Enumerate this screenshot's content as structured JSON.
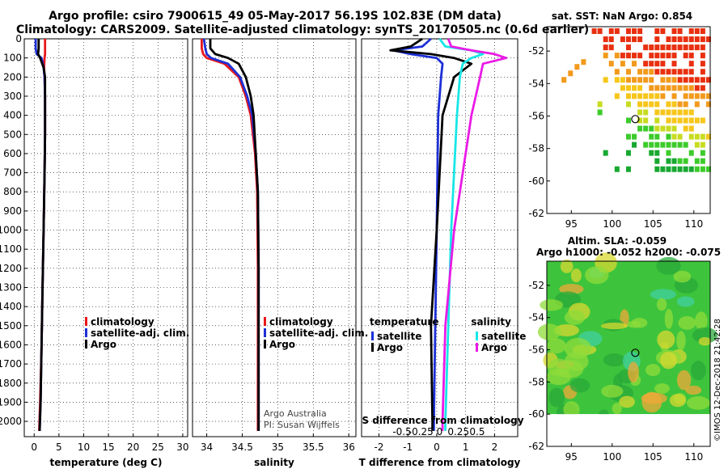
{
  "header": {
    "line1": "Argo profile: csiro 7900615_49 05-May-2017 56.19S 102.83E (DM data)",
    "line2": "Climatology: CARS2009. Satellite-adjusted climatology: synTS_20170505.nc (0.6d earlier)"
  },
  "colors": {
    "climatology": "#e8161b",
    "satellite": "#1c2fd6",
    "argo": "#000000",
    "sat_salinity": "#18e6e6",
    "argo_salinity": "#ea1ae6"
  },
  "chart_data": [
    {
      "type": "line",
      "id": "temperature",
      "xlabel": "temperature (deg C)",
      "xlim": [
        -2,
        31
      ],
      "xticks": [
        0,
        5,
        10,
        15,
        20,
        25,
        30
      ],
      "ylim": [
        0,
        2080
      ],
      "yticks": [
        0,
        100,
        200,
        300,
        400,
        500,
        600,
        700,
        800,
        900,
        1000,
        1100,
        1200,
        1300,
        1400,
        1500,
        1600,
        1700,
        1800,
        1900,
        2000
      ],
      "depth": [
        0,
        50,
        80,
        100,
        150,
        200,
        300,
        500,
        700,
        1000,
        1300,
        1600,
        1900,
        2050
      ],
      "series": [
        {
          "name": "climatology",
          "values": [
            2.2,
            2.2,
            2.2,
            2.1,
            2.0,
            2.1,
            2.2,
            2.2,
            2.1,
            1.9,
            1.7,
            1.5,
            1.2,
            1.0
          ]
        },
        {
          "name": "satellite-adj. clim.",
          "values": [
            0.3,
            0.3,
            0.5,
            1.5,
            1.9,
            2.1,
            2.2,
            2.2,
            2.1,
            1.9,
            1.7,
            1.5,
            1.3,
            1.1
          ]
        },
        {
          "name": "Argo",
          "values": [
            0.9,
            0.9,
            0.8,
            1.2,
            1.9,
            2.2,
            2.2,
            2.2,
            2.1,
            1.9,
            1.7,
            1.5,
            1.3,
            1.1
          ]
        }
      ],
      "legend": [
        "climatology",
        "satellite-adj. clim.",
        "Argo"
      ]
    },
    {
      "type": "line",
      "id": "salinity",
      "xlabel": "salinity",
      "xlim": [
        33.8,
        36.1
      ],
      "xticks": [
        34,
        34.5,
        35,
        35.5,
        36
      ],
      "depth": [
        0,
        50,
        80,
        100,
        130,
        200,
        300,
        400,
        600,
        800,
        1200,
        1600,
        2000,
        2050
      ],
      "series": [
        {
          "name": "climatology",
          "values": [
            33.93,
            33.93,
            33.95,
            34.0,
            34.25,
            34.45,
            34.55,
            34.62,
            34.68,
            34.71,
            34.72,
            34.72,
            34.72,
            34.72
          ]
        },
        {
          "name": "satellite-adj. clim.",
          "values": [
            33.96,
            33.98,
            34.0,
            34.06,
            34.3,
            34.47,
            34.57,
            34.64,
            34.69,
            34.72,
            34.73,
            34.73,
            34.73,
            34.73
          ]
        },
        {
          "name": "Argo",
          "values": [
            34.05,
            34.05,
            34.12,
            34.3,
            34.45,
            34.55,
            34.62,
            34.66,
            34.69,
            34.72,
            34.73,
            34.73,
            34.73,
            34.73
          ]
        }
      ],
      "legend": [
        "climatology",
        "satellite-adj. clim.",
        "Argo"
      ],
      "annotation": [
        "Argo Australia",
        "PI: Susan Wijffels"
      ]
    },
    {
      "type": "line",
      "id": "differences",
      "xlabel": "T difference from climatology",
      "top_xlabel": "S difference from climatology",
      "xlim": [
        -2.6,
        2.8
      ],
      "xticks": [
        -2,
        -1,
        0,
        1,
        2
      ],
      "top_xticks": [
        "-0.5",
        "-0.25",
        "0",
        "0.25",
        "0.5"
      ],
      "depth": [
        0,
        40,
        60,
        80,
        100,
        130,
        200,
        400,
        1000,
        1500,
        2000,
        2050
      ],
      "series": [
        {
          "name": "temperature satellite",
          "values": [
            -0.2,
            -0.5,
            -1.5,
            -0.9,
            0.0,
            0.2,
            0.15,
            0.05,
            0.0,
            -0.05,
            -0.1,
            -0.1
          ]
        },
        {
          "name": "temperature Argo",
          "values": [
            -0.5,
            -0.9,
            -1.6,
            -0.2,
            0.6,
            1.2,
            0.6,
            0.2,
            0.0,
            -0.2,
            -0.15,
            -0.15
          ]
        },
        {
          "name": "salinity satellite",
          "values": [
            0.1,
            0.3,
            1.2,
            1.6,
            1.2,
            0.9,
            0.8,
            0.7,
            0.5,
            0.4,
            0.3,
            0.3
          ]
        },
        {
          "name": "salinity Argo",
          "values": [
            0.4,
            0.5,
            1.2,
            2.0,
            2.4,
            1.6,
            1.5,
            1.2,
            0.6,
            0.3,
            0.2,
            0.2
          ]
        }
      ],
      "legend_left_title": "temperature",
      "legend_right_title": "salinity",
      "legend_left": [
        "satellite",
        "Argo"
      ],
      "legend_right": [
        "satellite",
        "Argo"
      ]
    },
    {
      "type": "heatmap",
      "id": "sst-map",
      "title": "sat. SST: NaN Argo: 0.854",
      "xlim": [
        92,
        112
      ],
      "ylim": [
        -62,
        -50.5
      ],
      "xticks": [
        95,
        100,
        105,
        110
      ],
      "yticks": [
        -52,
        -54,
        -56,
        -58,
        -60,
        -62
      ],
      "marker": {
        "lon": 102.83,
        "lat": -56.19
      }
    },
    {
      "type": "heatmap",
      "id": "sla-map",
      "title1": "Altim. SLA: -0.059",
      "title2": "Argo h1000: -0.052 h2000: -0.075",
      "xlim": [
        92,
        112
      ],
      "ylim": [
        -62,
        -50.5
      ],
      "xticks": [
        95,
        100,
        105,
        110
      ],
      "yticks": [
        -52,
        -54,
        -56,
        -58,
        -60,
        -62
      ],
      "marker": {
        "lon": 102.83,
        "lat": -56.19
      }
    }
  ],
  "footer": {
    "stamp": "©IMOS 12-Dec-2018 21:42:28"
  }
}
